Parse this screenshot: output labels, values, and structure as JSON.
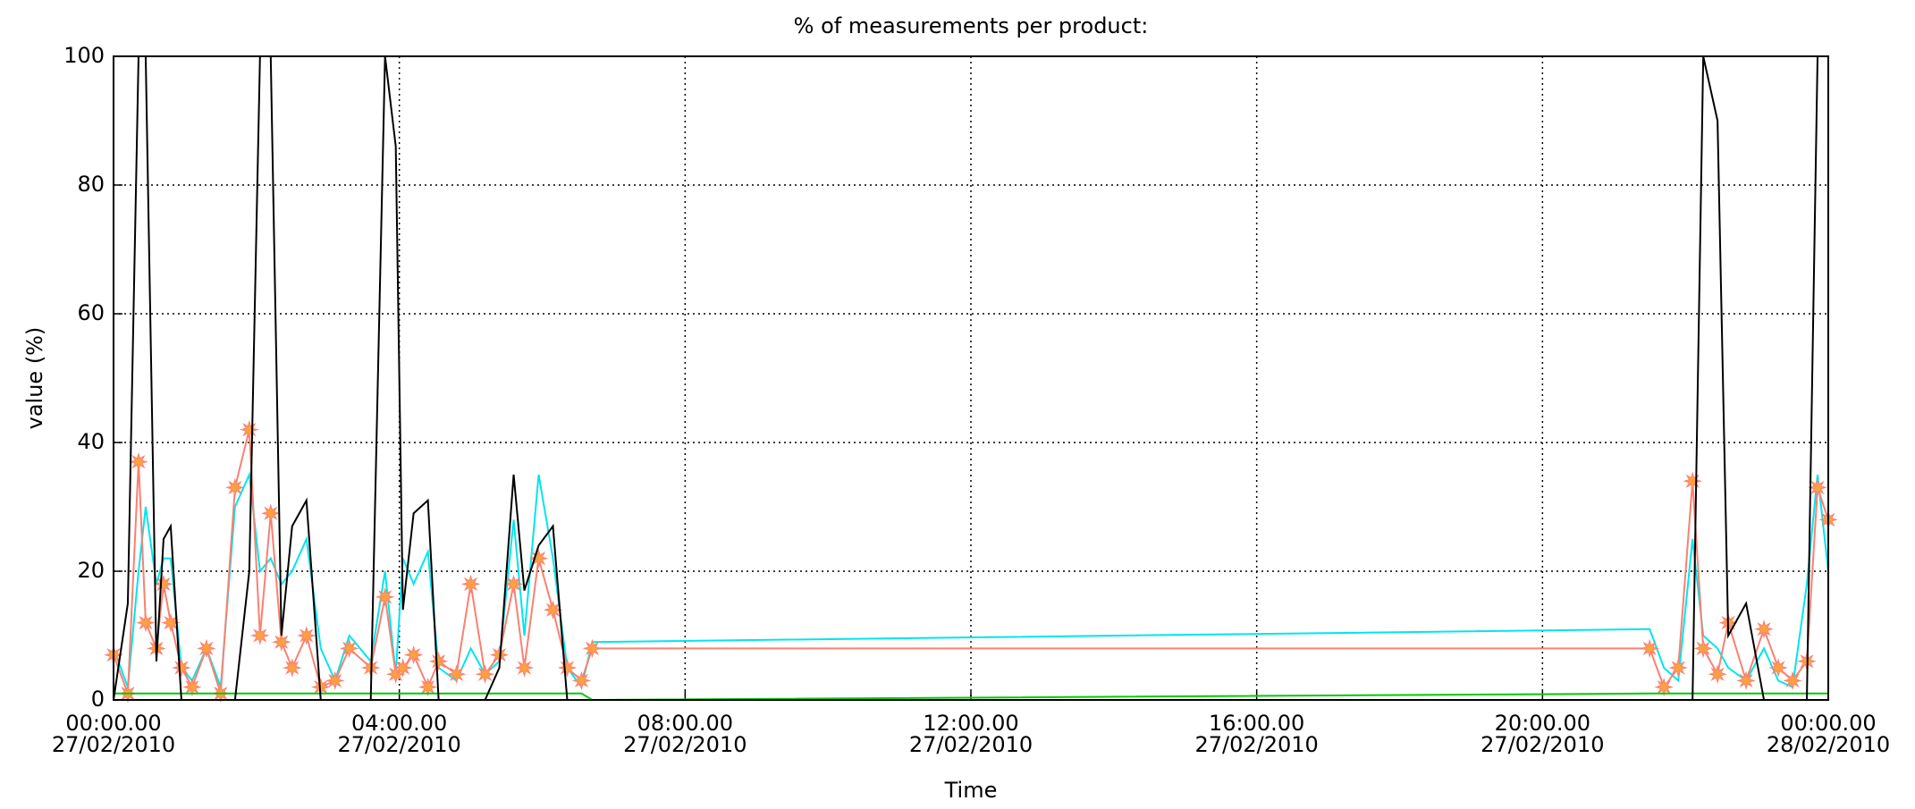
{
  "chart_data": {
    "type": "line",
    "title": "% of measurements per product:",
    "x_label": "Time",
    "y_label": "value (%)",
    "x": [
      0,
      0.2,
      0.35,
      0.45,
      0.6,
      0.7,
      0.8,
      0.95,
      1.1,
      1.3,
      1.5,
      1.7,
      1.9,
      2.05,
      2.2,
      2.35,
      2.5,
      2.7,
      2.9,
      3.1,
      3.3,
      3.6,
      3.8,
      3.95,
      4.05,
      4.2,
      4.4,
      4.55,
      4.8,
      5.0,
      5.2,
      5.4,
      5.6,
      5.75,
      5.95,
      6.15,
      6.35,
      6.55,
      6.7,
      21.5,
      21.7,
      21.9,
      22.1,
      22.25,
      22.45,
      22.6,
      22.85,
      23.1,
      23.3,
      23.5,
      23.7,
      23.85,
      24.0
    ],
    "series": [
      {
        "color": "#00e5ee",
        "values": [
          8,
          2,
          20,
          30,
          18,
          22,
          22,
          5,
          3,
          8,
          2,
          30,
          35,
          20,
          22,
          18,
          20,
          25,
          8,
          3,
          10,
          6,
          20,
          4,
          22,
          18,
          23,
          5,
          3,
          8,
          4,
          6,
          28,
          10,
          35,
          22,
          5,
          2,
          9,
          11,
          5,
          3,
          25,
          10,
          8,
          5,
          3,
          8,
          3,
          2,
          18,
          35,
          20
        ]
      },
      {
        "color": "#fa8072",
        "marker": "star",
        "values": [
          7,
          1,
          37,
          12,
          8,
          18,
          12,
          5,
          2,
          8,
          1,
          33,
          42,
          10,
          29,
          9,
          5,
          10,
          2,
          3,
          8,
          5,
          16,
          4,
          5,
          7,
          2,
          6,
          4,
          18,
          4,
          7,
          18,
          5,
          22,
          14,
          5,
          3,
          8,
          8,
          2,
          5,
          34,
          8,
          4,
          12,
          3,
          11,
          5,
          3,
          6,
          33,
          28
        ]
      },
      {
        "color": "#00cc00",
        "values": [
          1,
          1,
          1,
          1,
          1,
          1,
          1,
          1,
          1,
          1,
          1,
          1,
          1,
          1,
          1,
          1,
          1,
          1,
          1,
          1,
          1,
          1,
          1,
          1,
          1,
          1,
          1,
          1,
          1,
          1,
          1,
          1,
          1,
          1,
          1,
          1,
          1,
          1,
          0,
          1,
          1,
          1,
          1,
          1,
          1,
          1,
          1,
          1,
          1,
          1,
          1,
          1,
          1
        ]
      },
      {
        "color": "#000000",
        "values": [
          0,
          15,
          100,
          100,
          6,
          25,
          27,
          0,
          0,
          0,
          0,
          0,
          20,
          100,
          100,
          10,
          27,
          31,
          0,
          0,
          0,
          0,
          100,
          86,
          14,
          29,
          31,
          0,
          0,
          0,
          0,
          5,
          35,
          17,
          24,
          27,
          0,
          0,
          0,
          0,
          0,
          0,
          0,
          100,
          90,
          10,
          15,
          0,
          0,
          0,
          0,
          100,
          100
        ]
      }
    ],
    "xlim": [
      0,
      24
    ],
    "xticks": [
      {
        "value": 0,
        "label": "00:00.00\n27/02/2010"
      },
      {
        "value": 4,
        "label": "04:00.00\n27/02/2010"
      },
      {
        "value": 8,
        "label": "08:00.00\n27/02/2010"
      },
      {
        "value": 12,
        "label": "12:00.00\n27/02/2010"
      },
      {
        "value": 16,
        "label": "16:00.00\n27/02/2010"
      },
      {
        "value": 20,
        "label": "20:00.00\n27/02/2010"
      },
      {
        "value": 24,
        "label": "00:00.00\n28/02/2010"
      }
    ],
    "ylim": [
      0,
      100
    ],
    "yticks": [
      0,
      20,
      40,
      60,
      80,
      100
    ],
    "grid": true
  }
}
